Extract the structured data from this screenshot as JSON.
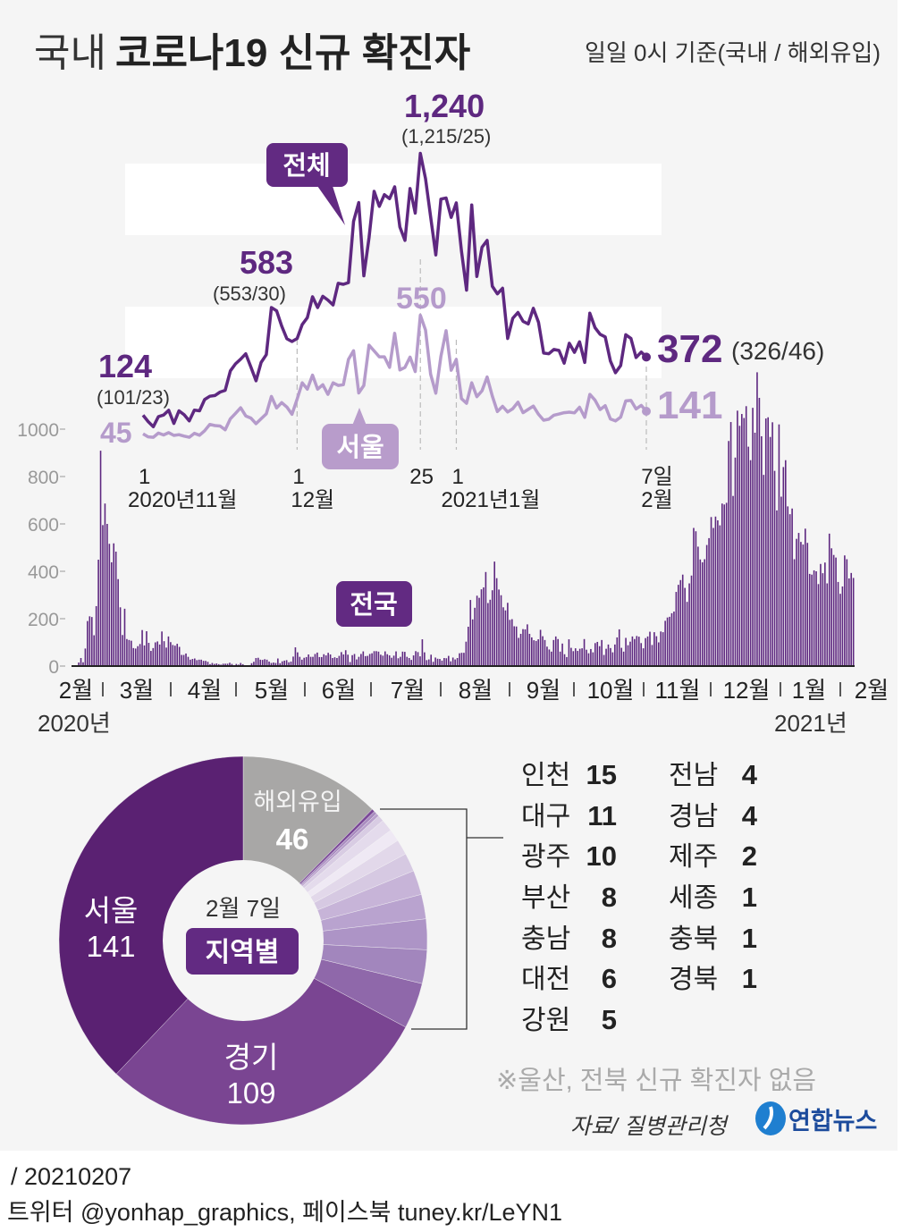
{
  "header": {
    "title_regular": "국내",
    "title_bold": "코로나19 신규 확진자",
    "subtitle": "일일 0시 기준(국내 / 해외유입)"
  },
  "colors": {
    "total": "#5e2880",
    "seoul": "#b59bcb",
    "badge_dark": "#622a82",
    "badge_light": "#b89ccb",
    "overseas": "#a8a7a6",
    "logo": "#1c4b9c"
  },
  "chart_data": [
    {
      "type": "line",
      "name": "inset-daily-trend",
      "x_start": "2020-11-01",
      "x_end": "2021-02-07",
      "x_ticks": [
        {
          "day": "1",
          "month": "2020년11월"
        },
        {
          "day": "1",
          "month": "12월"
        },
        {
          "day": "25",
          "month": ""
        },
        {
          "day": "1",
          "month": "2021년1월"
        },
        {
          "day": "7일",
          "month": "2월"
        }
      ],
      "series": [
        {
          "name": "전체",
          "values": [
            124,
            97,
            75,
            118,
            125,
            145,
            89,
            143,
            126,
            100,
            146,
            143,
            191,
            205,
            208,
            223,
            230,
            313,
            343,
            363,
            386,
            330,
            271,
            349,
            382,
            583,
            569,
            504,
            450,
            438,
            451,
            511,
            540,
            629,
            583,
            631,
            615,
            594,
            686,
            682,
            689,
            950,
            1030,
            718,
            880,
            1078,
            1014,
            1064,
            1047,
            1097,
            926,
            869,
            1090,
            985,
            1240,
            1132,
            970,
            807,
            1045,
            1050,
            967,
            1029,
            824,
            657,
            1020,
            715,
            840,
            869,
            674,
            641,
            665,
            451,
            537,
            562,
            524,
            513,
            580,
            520,
            389,
            386,
            404,
            400,
            346,
            431,
            392,
            437,
            349,
            559,
            497,
            469,
            458,
            355,
            305,
            336,
            467,
            451,
            370,
            393,
            372
          ]
        },
        {
          "name": "서울",
          "values": [
            45,
            32,
            30,
            48,
            40,
            50,
            38,
            41,
            35,
            30,
            47,
            39,
            58,
            85,
            80,
            78,
            62,
            109,
            132,
            156,
            121,
            112,
            88,
            109,
            130,
            204,
            155,
            178,
            159,
            128,
            193,
            262,
            235,
            295,
            235,
            254,
            213,
            262,
            251,
            254,
            362,
            399,
            219,
            251,
            423,
            398,
            373,
            373,
            328,
            473,
            317,
            328,
            372,
            310,
            550,
            487,
            299,
            218,
            375,
            484,
            316,
            362,
            195,
            175,
            262,
            203,
            228,
            287,
            206,
            140,
            162,
            138,
            152,
            180,
            135,
            149,
            163,
            128,
            103,
            107,
            124,
            129,
            135,
            137,
            134,
            158,
            115,
            213,
            188,
            148,
            165,
            108,
            100,
            116,
            185,
            187,
            151,
            166,
            141
          ]
        }
      ],
      "annotations": [
        {
          "value": "124",
          "detail": "(101/23)"
        },
        {
          "value": "583",
          "detail": "(553/30)"
        },
        {
          "value": "1,240",
          "detail": "(1,215/25)"
        },
        {
          "value": "550",
          "detail": ""
        },
        {
          "value": "372",
          "detail": "(326/46)"
        },
        {
          "value": "141",
          "detail": ""
        },
        {
          "value": "45",
          "detail": ""
        }
      ]
    },
    {
      "type": "bar",
      "name": "national-daily-cases",
      "series_label": "전국",
      "x_start": "2020-02-18",
      "x_end": "2021-02-07",
      "ylim": [
        0,
        1240
      ],
      "y_ticks": [
        "0",
        "200",
        "400",
        "600",
        "800",
        "1000"
      ],
      "month_labels": [
        "2월",
        "3월",
        "4월",
        "5월",
        "6월",
        "7월",
        "8월",
        "9월",
        "10월",
        "11월",
        "12월",
        "1월",
        "2월"
      ],
      "year_labels": [
        "2020년",
        "2021년"
      ],
      "values": [
        1,
        15,
        34,
        16,
        74,
        190,
        210,
        207,
        130,
        253,
        449,
        909,
        595,
        686,
        600,
        516,
        438,
        518,
        483,
        367,
        248,
        131,
        242,
        114,
        110,
        107,
        76,
        74,
        84,
        93,
        152,
        87,
        147,
        98,
        64,
        76,
        100,
        104,
        91,
        146,
        105,
        78,
        125,
        101,
        89,
        86,
        94,
        81,
        47,
        47,
        53,
        39,
        27,
        30,
        32,
        25,
        27,
        27,
        22,
        22,
        18,
        8,
        13,
        9,
        11,
        8,
        6,
        10,
        10,
        10,
        14,
        9,
        4,
        9,
        6,
        13,
        8,
        3,
        2,
        4,
        12,
        18,
        34,
        35,
        27,
        26,
        29,
        27,
        19,
        13,
        15,
        13,
        32,
        12,
        20,
        23,
        25,
        16,
        19,
        40,
        79,
        58,
        39,
        27,
        35,
        38,
        49,
        39,
        39,
        51,
        57,
        38,
        38,
        50,
        45,
        56,
        49,
        34,
        37,
        34,
        43,
        59,
        49,
        67,
        48,
        17,
        46,
        51,
        28,
        39,
        51,
        62,
        42,
        43,
        51,
        54,
        63,
        63,
        61,
        48,
        44,
        62,
        50,
        45,
        35,
        44,
        62,
        33,
        39,
        61,
        60,
        39,
        34,
        26,
        45,
        63,
        59,
        41,
        113,
        58,
        25,
        28,
        48,
        18,
        36,
        31,
        30,
        23,
        34,
        33,
        43,
        20,
        36,
        28,
        34,
        54,
        56,
        56,
        103,
        166,
        279,
        197,
        246,
        297,
        288,
        324,
        332,
        397,
        266,
        280,
        320,
        441,
        371,
        323,
        299,
        248,
        235,
        267,
        195,
        198,
        168,
        167,
        119,
        136,
        156,
        155,
        176,
        136,
        121,
        109,
        106,
        113,
        153,
        126,
        110,
        82,
        70,
        61,
        110,
        125,
        114,
        61,
        95,
        50,
        38,
        113,
        77,
        63,
        75,
        64,
        73,
        75,
        114,
        69,
        54,
        72,
        58,
        97,
        102,
        84,
        110,
        47,
        73,
        91,
        76,
        58,
        91,
        121,
        155,
        77,
        61,
        119,
        88,
        103,
        125,
        114,
        127,
        124,
        97,
        75,
        118,
        125,
        145,
        89,
        143,
        126,
        100,
        146,
        143,
        191,
        205,
        208,
        223,
        230,
        313,
        343,
        363,
        386,
        330,
        271,
        349,
        382,
        583,
        569,
        504,
        450,
        438,
        451,
        511,
        540,
        629,
        583,
        631,
        615,
        594,
        686,
        682,
        689,
        950,
        1030,
        718,
        880,
        1078,
        1014,
        1064,
        1047,
        1097,
        926,
        869,
        1090,
        985,
        1240,
        1132,
        970,
        807,
        1045,
        1050,
        967,
        1029,
        824,
        657,
        1020,
        715,
        840,
        869,
        674,
        641,
        665,
        451,
        537,
        562,
        524,
        513,
        580,
        520,
        389,
        386,
        404,
        400,
        346,
        431,
        392,
        437,
        349,
        559,
        497,
        469,
        458,
        355,
        305,
        336,
        467,
        451,
        370,
        393,
        372
      ]
    },
    {
      "type": "pie",
      "name": "regional-breakdown",
      "date_label": "2월 7일",
      "center_label": "지역별",
      "slices": [
        {
          "name": "해외유입",
          "value": 46,
          "color": "#a8a7a6"
        },
        {
          "name": "경북",
          "value": 1,
          "color": "#7b4a98"
        },
        {
          "name": "충북",
          "value": 1,
          "color": "#a88bbf"
        },
        {
          "name": "세종",
          "value": 1,
          "color": "#b9a1cc"
        },
        {
          "name": "제주",
          "value": 2,
          "color": "#d8cce3"
        },
        {
          "name": "전남",
          "value": 4,
          "color": "#e4dbec"
        },
        {
          "name": "경남",
          "value": 4,
          "color": "#efe9f4"
        },
        {
          "name": "강원",
          "value": 5,
          "color": "#e2d8ea"
        },
        {
          "name": "대전",
          "value": 6,
          "color": "#d6c9e2"
        },
        {
          "name": "충남",
          "value": 8,
          "color": "#c7b4d8"
        },
        {
          "name": "부산",
          "value": 8,
          "color": "#b9a3cf"
        },
        {
          "name": "광주",
          "value": 10,
          "color": "#ad94c6"
        },
        {
          "name": "대구",
          "value": 11,
          "color": "#a286bd"
        },
        {
          "name": "인천",
          "value": 15,
          "color": "#8f68aa"
        },
        {
          "name": "경기",
          "value": 109,
          "color": "#7a4592"
        },
        {
          "name": "서울",
          "value": 141,
          "color": "#5a2172"
        }
      ]
    }
  ],
  "legend": {
    "col1": [
      {
        "name": "인천",
        "value": "15"
      },
      {
        "name": "대구",
        "value": "11"
      },
      {
        "name": "광주",
        "value": "10"
      },
      {
        "name": "부산",
        "value": "8"
      },
      {
        "name": "충남",
        "value": "8"
      },
      {
        "name": "대전",
        "value": "6"
      },
      {
        "name": "강원",
        "value": "5"
      }
    ],
    "col2": [
      {
        "name": "전남",
        "value": "4"
      },
      {
        "name": "경남",
        "value": "4"
      },
      {
        "name": "제주",
        "value": "2"
      },
      {
        "name": "세종",
        "value": "1"
      },
      {
        "name": "충북",
        "value": "1"
      },
      {
        "name": "경북",
        "value": "1"
      }
    ]
  },
  "donut_labels": {
    "overseas_name": "해외유입",
    "overseas_value": "46",
    "seoul_name": "서울",
    "seoul_value": "141",
    "gyeonggi_name": "경기",
    "gyeonggi_value": "109"
  },
  "note": "※울산, 전북 신규 확진자 없음",
  "source": "자료/ 질병관리청",
  "logo_text": "연합뉴스",
  "footer": {
    "date": "/ 20210207",
    "social": "트위터 @yonhap_graphics, 페이스북 tuney.kr/LeYN1"
  }
}
